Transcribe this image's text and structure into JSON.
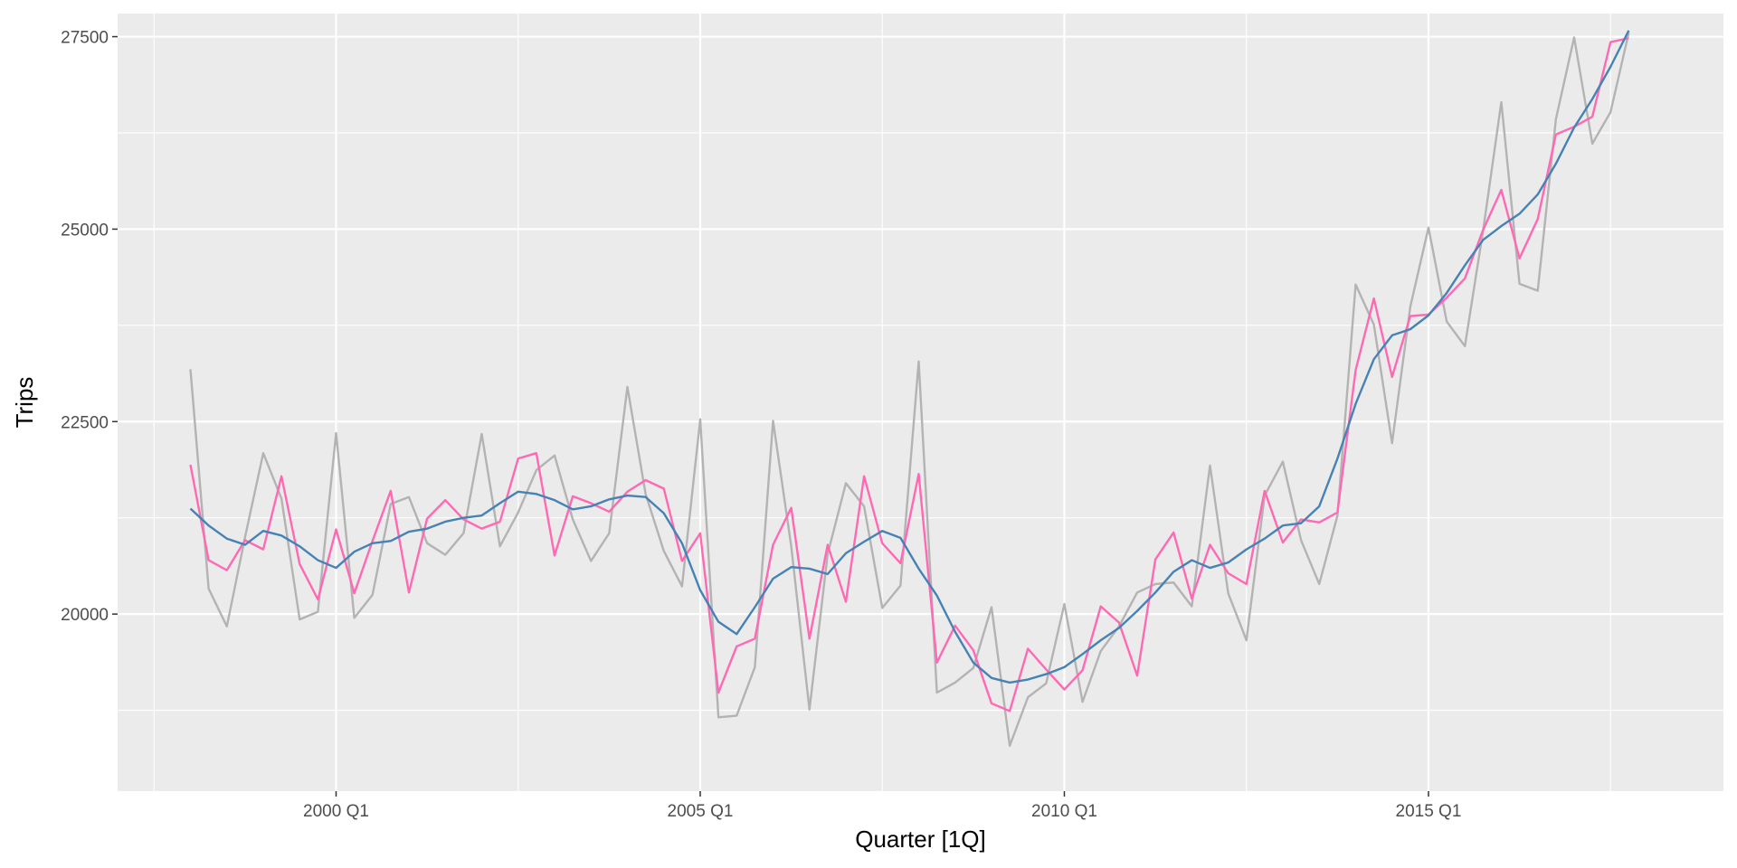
{
  "chart_data": {
    "type": "line",
    "xlabel": "Quarter [1Q]",
    "ylabel": "Trips",
    "x_start": "1998 Q1",
    "x_ticks": [
      {
        "x": 2000.0,
        "label": "2000 Q1"
      },
      {
        "x": 2005.0,
        "label": "2005 Q1"
      },
      {
        "x": 2010.0,
        "label": "2010 Q1"
      },
      {
        "x": 2015.0,
        "label": "2015 Q1"
      }
    ],
    "x_minor_ticks": [
      1997.5,
      2002.5,
      2007.5,
      2012.5,
      2017.5
    ],
    "xlim": [
      1997.0,
      2019.05
    ],
    "ylim": [
      17700,
      27800
    ],
    "y_ticks": [
      20000,
      22500,
      25000,
      27500
    ],
    "y_minor_ticks": [
      18750,
      21250,
      23750,
      26250
    ],
    "grid": true,
    "background": "#ebebeb",
    "series": [
      {
        "color": "#b3b3b3",
        "values": [
          23180,
          20330,
          19840,
          21000,
          22090,
          21500,
          19930,
          20030,
          22350,
          19950,
          20250,
          21430,
          21520,
          20920,
          20770,
          21050,
          22340,
          20880,
          21320,
          21870,
          22060,
          21230,
          20690,
          21050,
          22950,
          21560,
          20820,
          20360,
          22530,
          18660,
          18680,
          19310,
          22510,
          20880,
          18760,
          20780,
          21700,
          21400,
          20080,
          20370,
          23280,
          18980,
          19110,
          19300,
          20090,
          18290,
          18920,
          19100,
          20130,
          18860,
          19520,
          19840,
          20280,
          20390,
          20410,
          20100,
          21930,
          20270,
          19660,
          21540,
          21980,
          20960,
          20390,
          21280,
          24280,
          23760,
          22220,
          23990,
          25020,
          23800,
          23480,
          24980,
          26650,
          24290,
          24200,
          26430,
          27490,
          26110,
          26520,
          27550
        ]
      },
      {
        "color": "#ff69b4",
        "values": [
          21940,
          20700,
          20570,
          20960,
          20840,
          21790,
          20650,
          20190,
          21100,
          20270,
          20950,
          21600,
          20280,
          21240,
          21480,
          21230,
          21110,
          21200,
          22020,
          22090,
          20760,
          21530,
          21440,
          21330,
          21590,
          21740,
          21630,
          20690,
          21050,
          18980,
          19580,
          19680,
          20900,
          21380,
          19680,
          20900,
          20160,
          21790,
          20920,
          20660,
          21820,
          19370,
          19850,
          19530,
          18840,
          18740,
          19550,
          19280,
          19020,
          19270,
          20100,
          19890,
          19200,
          20710,
          21060,
          20200,
          20900,
          20530,
          20390,
          21600,
          20930,
          21230,
          21190,
          21320,
          23170,
          24100,
          23080,
          23870,
          23890,
          24110,
          24360,
          24990,
          25510,
          24620,
          25130,
          26230,
          26330,
          26460,
          27430,
          27480
        ]
      },
      {
        "color": "#4682b4",
        "values": [
          21370,
          21150,
          20980,
          20900,
          21080,
          21020,
          20880,
          20700,
          20600,
          20810,
          20920,
          20950,
          21070,
          21110,
          21200,
          21250,
          21280,
          21440,
          21590,
          21560,
          21480,
          21360,
          21400,
          21490,
          21540,
          21520,
          21310,
          20920,
          20310,
          19900,
          19740,
          20090,
          20460,
          20610,
          20590,
          20520,
          20790,
          20940,
          21080,
          20990,
          20590,
          20240,
          19770,
          19370,
          19170,
          19110,
          19150,
          19220,
          19310,
          19480,
          19660,
          19820,
          20040,
          20280,
          20550,
          20700,
          20600,
          20670,
          20840,
          20980,
          21150,
          21180,
          21400,
          22020,
          22730,
          23310,
          23620,
          23700,
          23880,
          24170,
          24530,
          24860,
          25040,
          25200,
          25450,
          25850,
          26320,
          26690,
          27110,
          27580
        ]
      }
    ]
  }
}
